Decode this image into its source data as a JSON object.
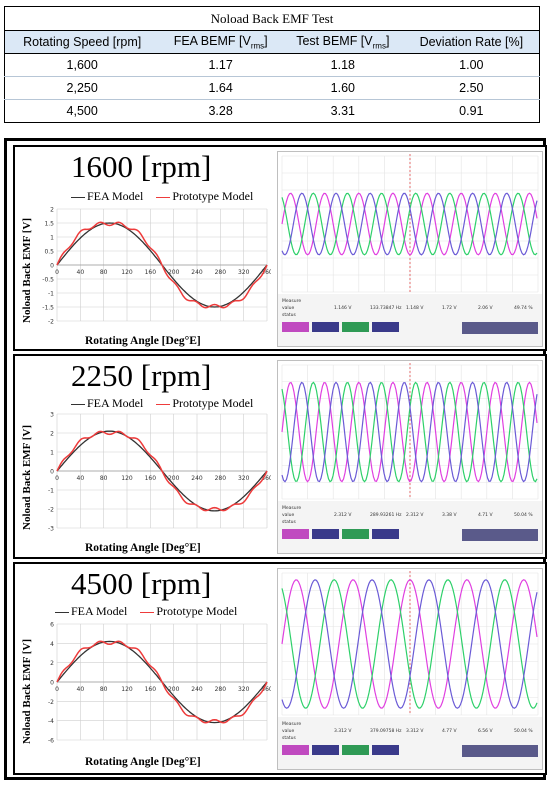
{
  "table": {
    "title": "Noload Back EMF Test",
    "headers": [
      "Rotating Speed [rpm]",
      "FEA BEMF [V",
      "Test BEMF [V",
      "Deviation Rate [%]"
    ],
    "header_sub": "rms",
    "header_close": "]",
    "rows": [
      [
        "1,600",
        "1.17",
        "1.18",
        "1.00"
      ],
      [
        "2,250",
        "1.64",
        "1.60",
        "2.50"
      ],
      [
        "4,500",
        "3.28",
        "3.31",
        "0.91"
      ]
    ]
  },
  "chart_data": [
    {
      "type": "line",
      "title": "1600 [rpm]",
      "xlabel": "Rotating Angle [Deg°E]",
      "ylabel": "Noload Back EMF [V]",
      "xlim": [
        0,
        360
      ],
      "ylim": [
        -2,
        2
      ],
      "xticks": [
        "0",
        "40",
        "80",
        "120",
        "160",
        "200",
        "240",
        "280",
        "320",
        "360"
      ],
      "yticks": [
        "2",
        "1.5",
        "1",
        "0.5",
        "0",
        "-0.5",
        "-1",
        "-1.5",
        "-2"
      ],
      "ytick_values": [
        2,
        1.5,
        1,
        0.5,
        0,
        -0.5,
        -1,
        -1.5,
        -2
      ],
      "legend": "top",
      "series": [
        {
          "name": "FEA Model",
          "color": "#333333",
          "amplitude": 1.5
        },
        {
          "name": "Prototype Model",
          "color": "#ee3b3b",
          "amplitude": 1.72
        }
      ]
    },
    {
      "type": "line",
      "title": "2250 [rpm]",
      "xlabel": "Rotating Angle [Deg°E]",
      "ylabel": "Noload Back EMF [V]",
      "xlim": [
        0,
        360
      ],
      "ylim": [
        -3,
        3
      ],
      "xticks": [
        "0",
        "40",
        "80",
        "120",
        "160",
        "200",
        "240",
        "280",
        "320",
        "360"
      ],
      "yticks": [
        "3",
        "2",
        "1",
        "0",
        "-1",
        "-2",
        "-3"
      ],
      "ytick_values": [
        3,
        2,
        1,
        0,
        -1,
        -2,
        -3
      ],
      "legend": "top",
      "series": [
        {
          "name": "FEA Model",
          "color": "#333333",
          "amplitude": 2.1
        },
        {
          "name": "Prototype Model",
          "color": "#ee3b3b",
          "amplitude": 2.35
        }
      ]
    },
    {
      "type": "line",
      "title": "4500 [rpm]",
      "xlabel": "Rotating Angle [Deg°E]",
      "ylabel": "Noload Back EMF [V]",
      "xlim": [
        0,
        360
      ],
      "ylim": [
        -6,
        6
      ],
      "xticks": [
        "0",
        "40",
        "80",
        "120",
        "160",
        "200",
        "240",
        "280",
        "320",
        "360"
      ],
      "yticks": [
        "6",
        "4",
        "2",
        "0",
        "-2",
        "-4",
        "-6"
      ],
      "ytick_values": [
        6,
        4,
        2,
        0,
        -2,
        -4,
        -6
      ],
      "legend": "top",
      "series": [
        {
          "name": "FEA Model",
          "color": "#333333",
          "amplitude": 4.2
        },
        {
          "name": "Prototype Model",
          "color": "#ee3b3b",
          "amplitude": 4.75
        }
      ]
    }
  ],
  "scopes": [
    {
      "name": "scope-1600",
      "cycles": 7.5,
      "amplitude": 0.22,
      "measure_label": "Measure",
      "value_label": "value",
      "status_label": "status",
      "readouts": [
        "1.146 V",
        "133.73847 Hz",
        "1.148 V",
        "1.72 V",
        "2.06 V",
        "49.74 %"
      ]
    },
    {
      "name": "scope-2250",
      "cycles": 7.5,
      "amplitude": 0.36,
      "measure_label": "Measure",
      "value_label": "value",
      "status_label": "status",
      "readouts": [
        "2.312 V",
        "289.93261 Hz",
        "2.312 V",
        "3.38 V",
        "4.71 V",
        "50.04 %"
      ]
    },
    {
      "name": "scope-4500",
      "cycles": 4.5,
      "amplitude": 0.44,
      "measure_label": "Measure",
      "value_label": "value",
      "status_label": "status",
      "readouts": [
        "3.312 V",
        "379.09758 Hz",
        "3.312 V",
        "4.77 V",
        "6.56 V",
        "50.04 %"
      ]
    }
  ],
  "colors": {
    "phase_a": "#e040e0",
    "phase_b": "#2ed06a",
    "phase_c": "#6b5bd6",
    "grid": "#cfcfcf"
  }
}
